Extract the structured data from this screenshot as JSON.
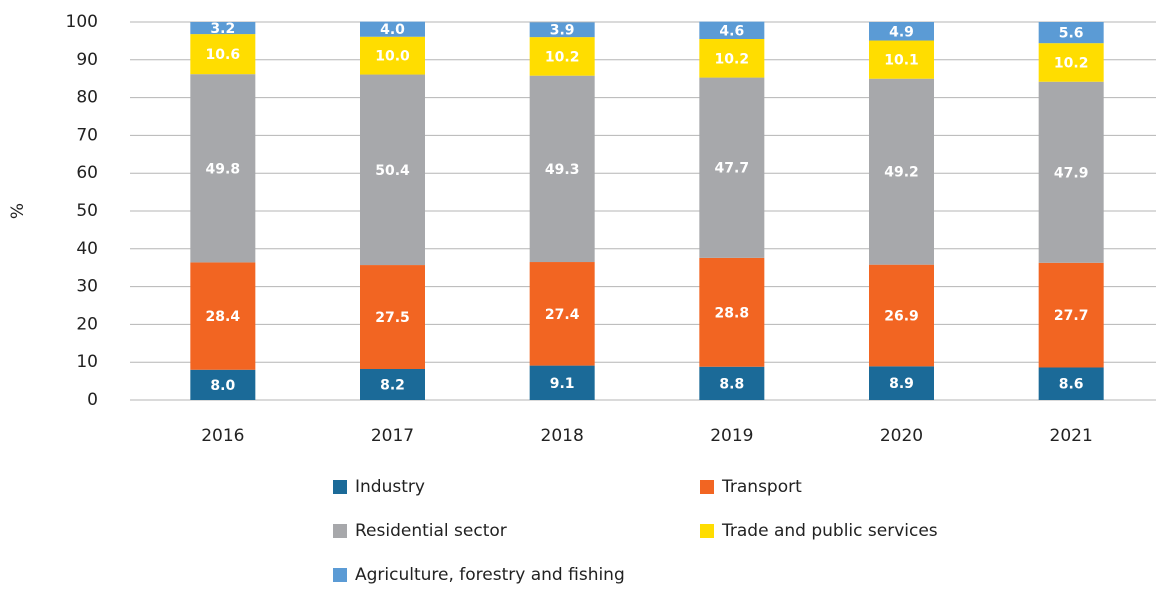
{
  "chart_data": {
    "type": "stacked_bar",
    "y_label": "%",
    "categories": [
      "2016",
      "2017",
      "2018",
      "2019",
      "2020",
      "2021"
    ],
    "series": [
      {
        "name": "Industry",
        "color": "#1b6a98",
        "values": [
          8.0,
          8.2,
          9.1,
          8.8,
          8.9,
          8.6
        ],
        "value_labels": [
          "8.0",
          "8.2",
          "9.1",
          "8.8",
          "8.9",
          "8.6"
        ]
      },
      {
        "name": "Transport",
        "color": "#f26522",
        "values": [
          28.4,
          27.5,
          27.4,
          28.8,
          26.9,
          27.7
        ],
        "value_labels": [
          "28.4",
          "27.5",
          "27.4",
          "28.8",
          "26.9",
          "27.7"
        ]
      },
      {
        "name": "Residential sector",
        "color": "#a7a8ab",
        "values": [
          49.8,
          50.4,
          49.3,
          47.7,
          49.2,
          47.9
        ],
        "value_labels": [
          "49.8",
          "50.4",
          "49.3",
          "47.7",
          "49.2",
          "47.9"
        ]
      },
      {
        "name": "Trade and public services",
        "color": "#ffdd00",
        "values": [
          10.6,
          10.0,
          10.2,
          10.2,
          10.1,
          10.2
        ],
        "value_labels": [
          "10.6",
          "10.0",
          "10.2",
          "10.2",
          "10.1",
          "10.2"
        ]
      },
      {
        "name": "Agriculture, forestry and fishing",
        "color": "#5b9bd5",
        "values": [
          3.2,
          4.0,
          3.9,
          4.6,
          4.9,
          5.6
        ],
        "value_labels": [
          "3.2",
          "4.0",
          "3.9",
          "4.6",
          "4.9",
          "5.6"
        ]
      }
    ],
    "ylim": [
      0,
      100
    ],
    "yticks": [
      0,
      10,
      20,
      30,
      40,
      50,
      60,
      70,
      80,
      90,
      100
    ],
    "grid": true,
    "legend": "bottom"
  }
}
